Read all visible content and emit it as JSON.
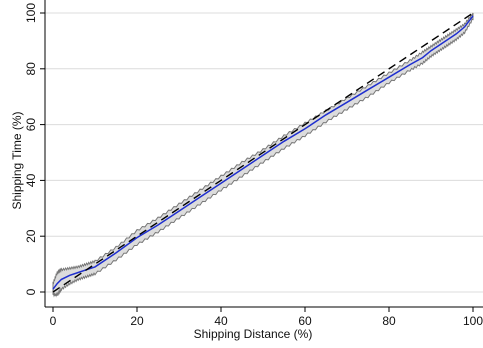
{
  "chart_data": {
    "type": "line",
    "xlabel": "Shipping Distance (%)",
    "ylabel": "Shipping Time (%)",
    "xlim": [
      0,
      100
    ],
    "ylim": [
      0,
      100
    ],
    "x_ticks": [
      0,
      20,
      40,
      60,
      80,
      100
    ],
    "y_ticks": [
      0,
      20,
      40,
      60,
      80,
      100
    ],
    "grid": "horizontal",
    "series": [
      {
        "role": "estimate",
        "style": "solid",
        "x": [
          0,
          1,
          2,
          4,
          6,
          8,
          10,
          15,
          20,
          25,
          30,
          35,
          40,
          45,
          50,
          55,
          60,
          65,
          70,
          75,
          80,
          85,
          88,
          90,
          92,
          94,
          96,
          98,
          100
        ],
        "y": [
          1,
          3,
          4.5,
          6,
          7,
          8,
          9,
          14,
          19.5,
          24,
          29,
          34,
          39,
          44,
          49,
          54,
          58.5,
          63.5,
          68,
          72.5,
          77,
          81.5,
          84,
          86.5,
          88.5,
          90.5,
          92.5,
          95,
          99
        ]
      },
      {
        "role": "reference",
        "style": "dashed",
        "x": [
          0,
          100
        ],
        "y": [
          0,
          100
        ]
      }
    ],
    "band": {
      "x": [
        0,
        1,
        2,
        4,
        6,
        8,
        10,
        15,
        20,
        25,
        30,
        35,
        40,
        45,
        50,
        55,
        60,
        65,
        70,
        75,
        80,
        85,
        88,
        90,
        92,
        94,
        96,
        98,
        100
      ],
      "upper": [
        3,
        7,
        8,
        8.5,
        9,
        10,
        11,
        16,
        22,
        26.5,
        31.5,
        36.5,
        41.5,
        46.5,
        51,
        56,
        60.5,
        65,
        69.5,
        74,
        78.5,
        83,
        86,
        88,
        90,
        92,
        94,
        96,
        100
      ],
      "lower": [
        -1,
        -1,
        1,
        3,
        4.5,
        5.5,
        6.5,
        11.5,
        17,
        21.5,
        26.5,
        31.5,
        36.5,
        41.5,
        46.5,
        51.5,
        56,
        61,
        65.5,
        70,
        75,
        79.5,
        82,
        84.5,
        86.5,
        88.5,
        90.5,
        93,
        98
      ]
    },
    "colors": {
      "estimate": "#1f2fcf",
      "reference": "#000000",
      "band_fill": "#dcdcdc",
      "band_edge": "#777777",
      "grid": "#dcdcdc",
      "axis": "#000000"
    }
  }
}
